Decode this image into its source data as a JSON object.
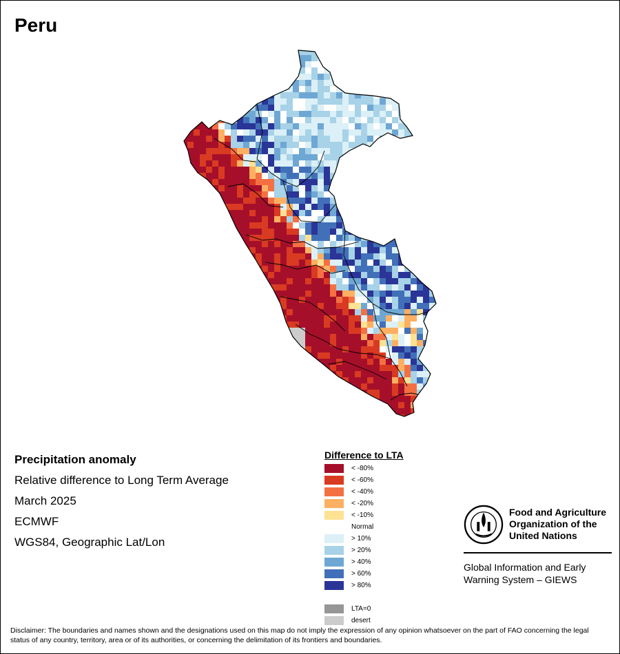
{
  "title": "Peru",
  "info": {
    "line1": "Precipitation anomaly",
    "line2": "Relative difference to Long Term Average",
    "line3": "March 2025",
    "line4": "ECMWF",
    "line5": "WGS84, Geographic Lat/Lon"
  },
  "legend": {
    "title": "Difference to LTA",
    "items": [
      {
        "label": "< -80%",
        "color": "#a50f2a"
      },
      {
        "label": "< -60%",
        "color": "#d93a22"
      },
      {
        "label": "< -40%",
        "color": "#f47043"
      },
      {
        "label": "< -20%",
        "color": "#fdb062"
      },
      {
        "label": "< -10%",
        "color": "#fee293"
      },
      {
        "label": "Normal",
        "color": "#ffffff"
      },
      {
        "label": "> 10%",
        "color": "#dcf0f7"
      },
      {
        "label": "> 20%",
        "color": "#a7d2e7"
      },
      {
        "label": "> 40%",
        "color": "#6fa7d4"
      },
      {
        "label": "> 60%",
        "color": "#4170b9"
      },
      {
        "label": "> 80%",
        "color": "#2a3597"
      },
      {
        "label": "",
        "color": "#ffffff"
      },
      {
        "label": "LTA=0",
        "color": "#969696"
      },
      {
        "label": "desert",
        "color": "#cccccc"
      }
    ]
  },
  "fao": {
    "name_line1": "Food and Agriculture",
    "name_line2": "Organization of the",
    "name_line3": "United Nations",
    "giews_line1": "Global Information and Early",
    "giews_line2": "Warning System – GIEWS"
  },
  "disclaimer": "Disclaimer: The boundaries and names shown and the designations used on this map do not imply the expression of any opinion whatsoever on the part of FAO concerning the legal status of any country, territory, area or of its authorities, or concerning the delimitation of its frontiers and boundaries."
}
